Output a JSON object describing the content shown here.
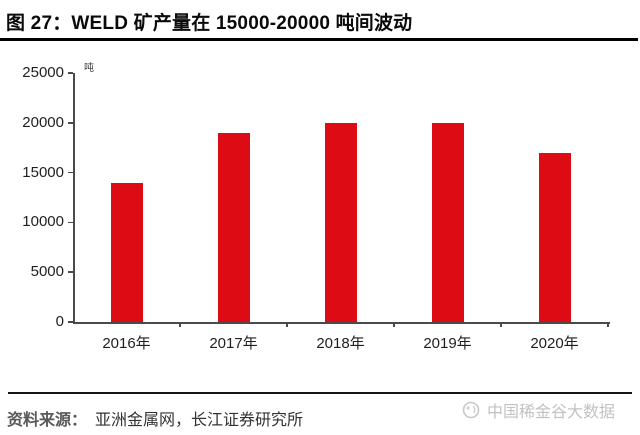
{
  "figure": {
    "title": "图 27：WELD 矿产量在 15000-20000 吨间波动",
    "source_label": "资料来源：",
    "source_text": "亚洲金属网，长江证券研究所",
    "watermark_text": "中国稀金谷大数据"
  },
  "chart_data": {
    "type": "bar",
    "title": "WELD 矿产量在 15000-20000 吨间波动",
    "unit_label": "吨",
    "xlabel": "",
    "ylabel": "吨",
    "categories": [
      "2016年",
      "2017年",
      "2018年",
      "2019年",
      "2020年"
    ],
    "values": [
      14000,
      19000,
      20000,
      20000,
      17000
    ],
    "ylim": [
      0,
      25000
    ],
    "yticks": [
      0,
      5000,
      10000,
      15000,
      20000,
      25000
    ],
    "bar_color": "#dc0b14",
    "grid": false,
    "legend": "none"
  }
}
